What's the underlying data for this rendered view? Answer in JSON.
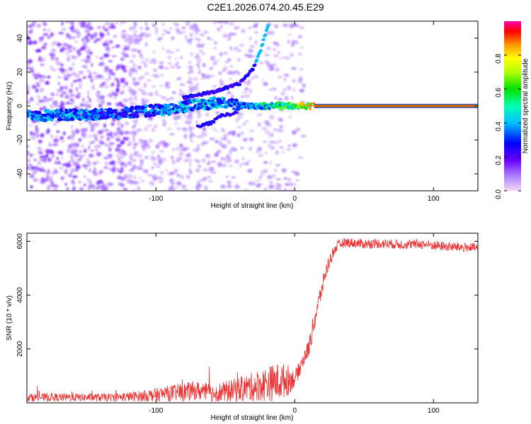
{
  "title": "C2E1.2026.074.20.45.E29",
  "colors": {
    "snr_line": "#f03030",
    "ridge_core": "#ff2020"
  },
  "chart_data": [
    {
      "type": "heatmap",
      "name": "spectrogram",
      "xlabel": "Height of straight line (km)",
      "ylabel": "Frequency (Hz)",
      "xlim": [
        -193,
        132
      ],
      "ylim": [
        -50,
        50
      ],
      "xticks": [
        -100,
        0,
        100
      ],
      "yticks": [
        -40,
        -20,
        0,
        20,
        40
      ],
      "colorbar": {
        "label": "Normalized spectral amplitude",
        "range": [
          0,
          1
        ],
        "ticks": [
          0.0,
          0.2,
          0.4,
          0.6,
          0.8
        ]
      },
      "main_ridge": {
        "x": [
          -193,
          -160,
          -130,
          -110,
          -90,
          -70,
          -50,
          -35,
          -20,
          -10,
          0,
          10,
          20,
          60,
          100,
          132
        ],
        "freq": [
          -6,
          -5,
          -5,
          -3,
          -2,
          1,
          2,
          0,
          0,
          0,
          0,
          0,
          0,
          0,
          0,
          0
        ],
        "amplitude": [
          0.4,
          0.4,
          0.35,
          0.35,
          0.4,
          0.45,
          0.4,
          0.4,
          0.55,
          0.6,
          0.7,
          0.8,
          0.95,
          0.95,
          0.95,
          0.95
        ]
      },
      "upper_branch": {
        "x": [
          -80,
          -60,
          -40,
          -30,
          -25,
          -22,
          -19
        ],
        "freq": [
          5,
          8,
          13,
          22,
          32,
          40,
          48
        ]
      },
      "lower_branch": {
        "x": [
          -70,
          -60,
          -55,
          -48,
          -42
        ],
        "freq": [
          -12,
          -10,
          -6,
          -5,
          -4
        ]
      }
    },
    {
      "type": "line",
      "name": "snr",
      "xlabel": "Height of straight line (km)",
      "ylabel": "SNR (10 * v/v)",
      "xlim": [
        -193,
        132
      ],
      "ylim": [
        0,
        6300
      ],
      "xticks": [
        -100,
        0,
        100
      ],
      "yticks": [
        2000,
        4000,
        6000
      ],
      "x": [
        -193,
        -170,
        -150,
        -130,
        -110,
        -100,
        -90,
        -80,
        -70,
        -60,
        -50,
        -40,
        -30,
        -20,
        -15,
        -10,
        -5,
        0,
        3,
        6,
        10,
        14,
        18,
        22,
        26,
        30,
        35,
        40,
        50,
        60,
        70,
        80,
        90,
        100,
        110,
        120,
        132
      ],
      "values": [
        200,
        200,
        200,
        200,
        250,
        300,
        350,
        400,
        450,
        350,
        400,
        500,
        600,
        700,
        750,
        800,
        850,
        900,
        1200,
        1600,
        2000,
        3000,
        3900,
        4800,
        5400,
        5800,
        5950,
        5950,
        5900,
        5920,
        5900,
        5880,
        5900,
        5850,
        5800,
        5780,
        5750
      ],
      "noise_amplitude": [
        150,
        150,
        150,
        150,
        200,
        250,
        300,
        350,
        350,
        350,
        400,
        450,
        550,
        650,
        700,
        700,
        600,
        300,
        300,
        300,
        350,
        400,
        350,
        300,
        250,
        200,
        180,
        180,
        180,
        180,
        180,
        180,
        180,
        180,
        180,
        180,
        180
      ]
    }
  ]
}
